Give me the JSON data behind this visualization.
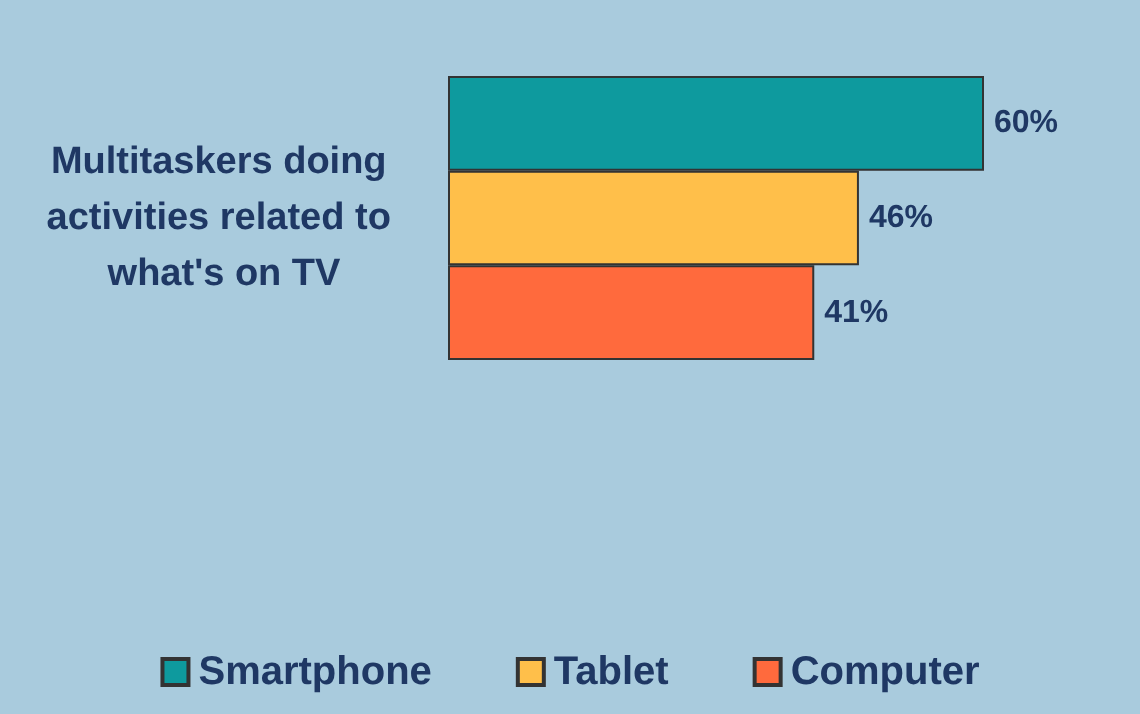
{
  "chart_data": {
    "type": "bar",
    "orientation": "horizontal",
    "categories": [
      "Multitaskers doing activities related to what's on TV"
    ],
    "series": [
      {
        "name": "Smartphone",
        "color": "#0e9a9e",
        "values": [
          60
        ],
        "value_labels": [
          "60%"
        ]
      },
      {
        "name": "Tablet",
        "color": "#ffbf4a",
        "values": [
          46
        ],
        "value_labels": [
          "46%"
        ]
      },
      {
        "name": "Computer",
        "color": "#ff6a3d",
        "values": [
          41
        ],
        "value_labels": [
          "41%"
        ]
      }
    ],
    "legend": "bottom"
  }
}
